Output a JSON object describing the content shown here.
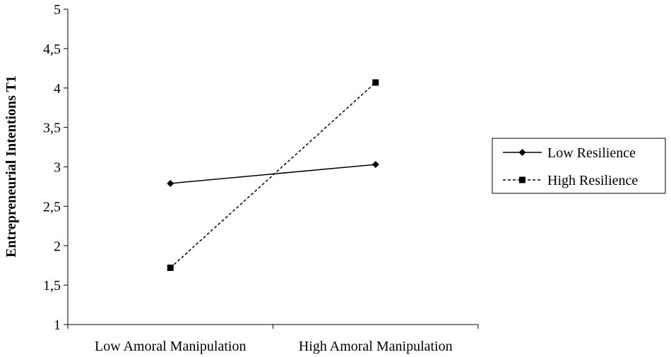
{
  "chart_data": {
    "type": "line",
    "ylabel": "Entrepreneurial Intentions T1",
    "xlabel": "",
    "categories": [
      "Low Amoral Manipulation",
      "High Amoral Manipulation"
    ],
    "ylim": [
      1,
      5
    ],
    "yticks": [
      1,
      1.5,
      2,
      2.5,
      3,
      3.5,
      4,
      4.5,
      5
    ],
    "ytick_labels": [
      "1",
      "1,5",
      "2",
      "2,5",
      "3",
      "3,5",
      "4",
      "4,5",
      "5"
    ],
    "grid": false,
    "legend_position": "right",
    "series": [
      {
        "name": "Low Resilience",
        "values": [
          2.79,
          3.03
        ],
        "marker": "diamond",
        "line_style": "solid",
        "color": "#000000"
      },
      {
        "name": "High Resilience",
        "values": [
          1.72,
          4.07
        ],
        "marker": "square",
        "line_style": "dashed",
        "color": "#000000"
      }
    ]
  }
}
